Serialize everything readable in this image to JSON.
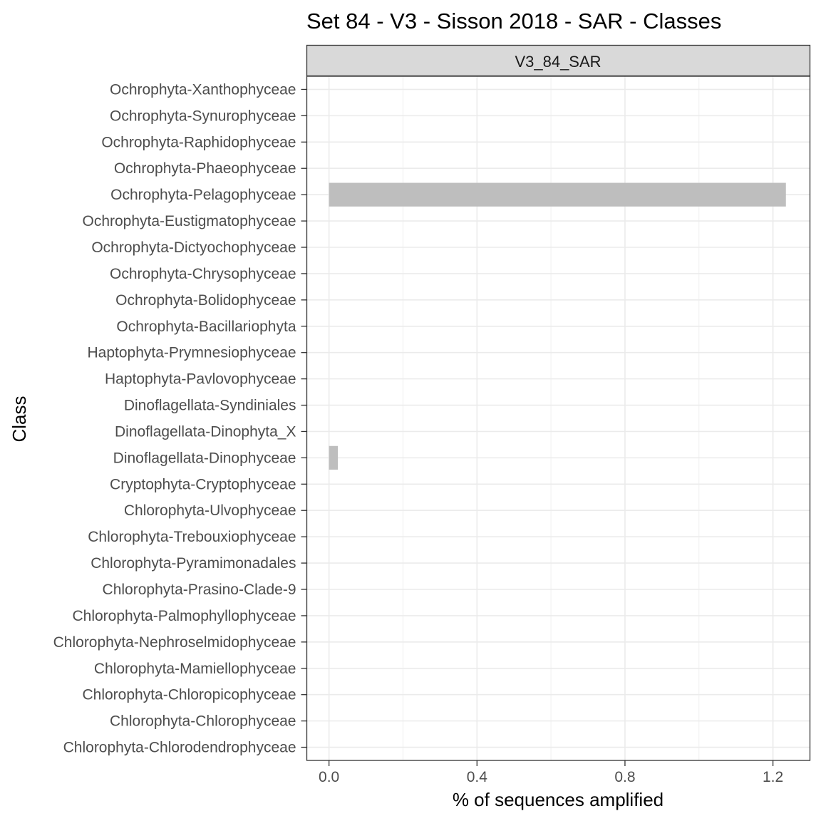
{
  "chart_data": {
    "type": "bar",
    "orientation": "horizontal",
    "title": "Set 84 - V3 - Sisson 2018 - SAR - Classes",
    "facet_label": "V3_84_SAR",
    "xlabel": "% of sequences amplified",
    "ylabel": "Class",
    "xlim": [
      -0.06,
      1.3
    ],
    "x_ticks": [
      0.0,
      0.4,
      0.8,
      1.2
    ],
    "x_tick_labels": [
      "0.0",
      "0.4",
      "0.8",
      "1.2"
    ],
    "grid": true,
    "bar_color": "#bebebe",
    "categories": [
      "Ochrophyta-Xanthophyceae",
      "Ochrophyta-Synurophyceae",
      "Ochrophyta-Raphidophyceae",
      "Ochrophyta-Phaeophyceae",
      "Ochrophyta-Pelagophyceae",
      "Ochrophyta-Eustigmatophyceae",
      "Ochrophyta-Dictyochophyceae",
      "Ochrophyta-Chrysophyceae",
      "Ochrophyta-Bolidophyceae",
      "Ochrophyta-Bacillariophyta",
      "Haptophyta-Prymnesiophyceae",
      "Haptophyta-Pavlovophyceae",
      "Dinoflagellata-Syndiniales",
      "Dinoflagellata-Dinophyta_X",
      "Dinoflagellata-Dinophyceae",
      "Cryptophyta-Cryptophyceae",
      "Chlorophyta-Ulvophyceae",
      "Chlorophyta-Trebouxiophyceae",
      "Chlorophyta-Pyramimonadales",
      "Chlorophyta-Prasino-Clade-9",
      "Chlorophyta-Palmophyllophyceae",
      "Chlorophyta-Nephroselmidophyceae",
      "Chlorophyta-Mamiellophyceae",
      "Chlorophyta-Chloropicophyceae",
      "Chlorophyta-Chlorophyceae",
      "Chlorophyta-Chlorodendrophyceae"
    ],
    "values": [
      0,
      0,
      0,
      0,
      1.235,
      0,
      0,
      0,
      0,
      0,
      0,
      0,
      0,
      0,
      0.024,
      0,
      0,
      0,
      0,
      0,
      0,
      0,
      0,
      0,
      0,
      0
    ]
  }
}
